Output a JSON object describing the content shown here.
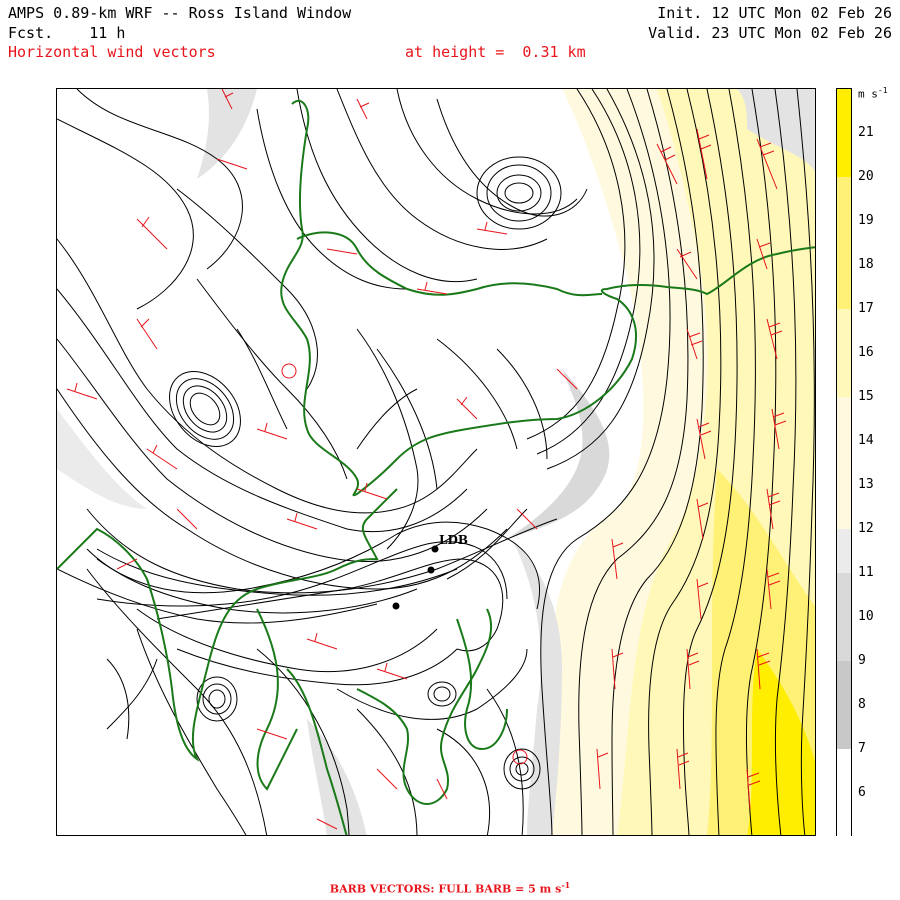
{
  "header": {
    "title": "AMPS 0.89-km WRF -- Ross Island Window",
    "fcst_label": "Fcst.",
    "fcst_value": "11 h",
    "field_name": "Horizontal wind vectors",
    "height_text": "at height =  0.31 km",
    "init_text": "Init. 12 UTC Mon 02 Feb 26",
    "valid_text": "Valid. 23 UTC Mon 02 Feb 26"
  },
  "colorbar": {
    "unit_base": "m s",
    "unit_exp": "-1",
    "labels": [
      "21",
      "20",
      "19",
      "18",
      "17",
      "16",
      "15",
      "14",
      "13",
      "12",
      "11",
      "10",
      "9",
      "8",
      "7",
      "6"
    ],
    "colors": {
      "white": "#ffffff",
      "light_gray": "#ebebeb",
      "mid_gray": "#d9d9d9",
      "dark_gray": "#c8c8c8",
      "pale_yellow": "#fffadf",
      "light_yellow": "#fff8b8",
      "yellow": "#fff176",
      "bright_yellow": "#ffee00"
    }
  },
  "map": {
    "station_label": "LDB",
    "colors": {
      "streamline": "#000000",
      "coast": "#1a7a1a",
      "barb": "#e8141b"
    }
  },
  "footer": {
    "text": "BARB VECTORS:  FULL BARB = 5 m s",
    "exp": "-1"
  }
}
